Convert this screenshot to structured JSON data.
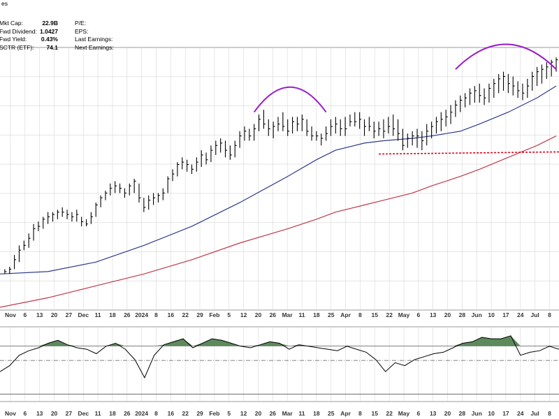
{
  "header": {
    "title_fragment": "es",
    "stats_left": [
      {
        "label": "Mkt Cap:",
        "value": "22.9B"
      },
      {
        "label": "Fwd Dividend:",
        "value": "1.0427"
      },
      {
        "label": "Fwd Yield:",
        "value": "0.43%"
      },
      {
        "label": "SCTR (ETF):",
        "value": "74.1"
      }
    ],
    "stats_right": [
      {
        "label": "P/E:"
      },
      {
        "label": "EPS:"
      },
      {
        "label": "Last Earnings:"
      },
      {
        "label": "Next Earnings:"
      }
    ]
  },
  "colors": {
    "price_bars": "#000000",
    "ma_short": "#2d3a8c",
    "ma_long": "#c0394b",
    "arc": "#9b1fc7",
    "support_line": "#e0001b",
    "grid": "#d6d6d6",
    "indicator_fill": "#5c8a5c",
    "indicator_line": "#000000"
  },
  "chart_data": {
    "type": "line",
    "x_tick_labels": [
      "Nov",
      "6",
      "13",
      "20",
      "27",
      "Dec",
      "11",
      "18",
      "26",
      "2024",
      "8",
      "16",
      "22",
      "29",
      "Feb",
      "5",
      "12",
      "20",
      "26",
      "Mar",
      "11",
      "18",
      "25",
      "Apr",
      "8",
      "15",
      "22",
      "May",
      "6",
      "13",
      "20",
      "28",
      "Jun",
      "10",
      "17",
      "24",
      "Jul",
      "8"
    ],
    "x_tick_bold": [
      true,
      false,
      false,
      false,
      false,
      true,
      false,
      false,
      false,
      true,
      false,
      false,
      false,
      false,
      true,
      false,
      false,
      false,
      false,
      true,
      false,
      false,
      false,
      true,
      false,
      false,
      false,
      true,
      false,
      false,
      false,
      false,
      true,
      false,
      false,
      false,
      true,
      false
    ],
    "x_range": [
      0,
      116
    ],
    "y_range": [
      0,
      100
    ],
    "x_tick_index": [
      2,
      3,
      8,
      13,
      18,
      23,
      28,
      33,
      38,
      42,
      47,
      52,
      56,
      61,
      66,
      67,
      72,
      77,
      82,
      87,
      92,
      97,
      102,
      107,
      112,
      117,
      122,
      127,
      131,
      136,
      141,
      146,
      151,
      156,
      161,
      166,
      170,
      175
    ],
    "price": [
      [
        1,
        16,
        14,
        15
      ],
      [
        2,
        17,
        14,
        16
      ],
      [
        3,
        22,
        16,
        20
      ],
      [
        4,
        26,
        19,
        24
      ],
      [
        5,
        28,
        24,
        26
      ],
      [
        6,
        31,
        25,
        29
      ],
      [
        7,
        35,
        28,
        33
      ],
      [
        8,
        36,
        32,
        34
      ],
      [
        9,
        38,
        33,
        37
      ],
      [
        10,
        40,
        35,
        38
      ],
      [
        11,
        40,
        36,
        39
      ],
      [
        12,
        41,
        37,
        40
      ],
      [
        13,
        42,
        38,
        40
      ],
      [
        14,
        41,
        37,
        39
      ],
      [
        15,
        40,
        36,
        38
      ],
      [
        16,
        41,
        36,
        39
      ],
      [
        17,
        38,
        34,
        36
      ],
      [
        18,
        37,
        34,
        35
      ],
      [
        19,
        40,
        35,
        38
      ],
      [
        20,
        44,
        38,
        43
      ],
      [
        21,
        47,
        42,
        46
      ],
      [
        22,
        49,
        45,
        48
      ],
      [
        23,
        52,
        47,
        50
      ],
      [
        24,
        53,
        48,
        51
      ],
      [
        25,
        52,
        48,
        50
      ],
      [
        26,
        50,
        46,
        48
      ],
      [
        27,
        52,
        47,
        51
      ],
      [
        28,
        54,
        48,
        53
      ],
      [
        29,
        52,
        44,
        46
      ],
      [
        30,
        46,
        40,
        42
      ],
      [
        31,
        47,
        41,
        45
      ],
      [
        32,
        48,
        43,
        46
      ],
      [
        33,
        48,
        44,
        47
      ],
      [
        34,
        50,
        45,
        48
      ],
      [
        35,
        55,
        48,
        54
      ],
      [
        36,
        58,
        53,
        56
      ],
      [
        37,
        61,
        55,
        60
      ],
      [
        38,
        63,
        58,
        61
      ],
      [
        39,
        62,
        57,
        60
      ],
      [
        40,
        60,
        56,
        58
      ],
      [
        41,
        63,
        57,
        61
      ],
      [
        42,
        66,
        59,
        64
      ],
      [
        43,
        65,
        60,
        62
      ],
      [
        44,
        68,
        61,
        66
      ],
      [
        45,
        70,
        64,
        68
      ],
      [
        46,
        71,
        65,
        69
      ],
      [
        47,
        70,
        63,
        66
      ],
      [
        48,
        68,
        62,
        64
      ],
      [
        49,
        70,
        63,
        68
      ],
      [
        50,
        74,
        67,
        72
      ],
      [
        51,
        76,
        70,
        74
      ],
      [
        52,
        75,
        70,
        72
      ],
      [
        53,
        77,
        70,
        75
      ],
      [
        54,
        81,
        74,
        79
      ],
      [
        55,
        83,
        75,
        77
      ],
      [
        56,
        79,
        72,
        75
      ],
      [
        57,
        78,
        71,
        76
      ],
      [
        58,
        80,
        74,
        77
      ],
      [
        59,
        82,
        74,
        76
      ],
      [
        60,
        79,
        72,
        74
      ],
      [
        61,
        80,
        73,
        78
      ],
      [
        62,
        80,
        74,
        77
      ],
      [
        63,
        81,
        74,
        79
      ],
      [
        64,
        79,
        72,
        74
      ],
      [
        65,
        76,
        70,
        72
      ],
      [
        66,
        74,
        70,
        72
      ],
      [
        67,
        73,
        68,
        71
      ],
      [
        68,
        76,
        70,
        73
      ],
      [
        69,
        79,
        72,
        76
      ],
      [
        70,
        80,
        73,
        77
      ],
      [
        71,
        79,
        72,
        75
      ],
      [
        72,
        80,
        72,
        75
      ],
      [
        73,
        81,
        76,
        78
      ],
      [
        74,
        82,
        76,
        78
      ],
      [
        75,
        82,
        75,
        79
      ],
      [
        76,
        79,
        72,
        76
      ],
      [
        77,
        80,
        74,
        76
      ],
      [
        78,
        78,
        71,
        74
      ],
      [
        79,
        78,
        72,
        75
      ],
      [
        80,
        79,
        71,
        74
      ],
      [
        81,
        80,
        73,
        76
      ],
      [
        82,
        81,
        72,
        75
      ],
      [
        83,
        79,
        70,
        73
      ],
      [
        84,
        75,
        66,
        68
      ],
      [
        85,
        73,
        67,
        71
      ],
      [
        86,
        74,
        68,
        72
      ],
      [
        87,
        75,
        67,
        72
      ],
      [
        88,
        74,
        66,
        70
      ],
      [
        89,
        77,
        68,
        74
      ],
      [
        90,
        78,
        71,
        76
      ],
      [
        91,
        80,
        73,
        78
      ],
      [
        92,
        82,
        74,
        79
      ],
      [
        93,
        83,
        76,
        80
      ],
      [
        94,
        85,
        77,
        82
      ],
      [
        95,
        87,
        80,
        85
      ],
      [
        96,
        89,
        82,
        87
      ],
      [
        97,
        90,
        84,
        88
      ],
      [
        98,
        92,
        85,
        90
      ],
      [
        99,
        93,
        86,
        91
      ],
      [
        100,
        94,
        86,
        89
      ],
      [
        101,
        92,
        85,
        88
      ],
      [
        102,
        94,
        86,
        92
      ],
      [
        103,
        96,
        88,
        94
      ],
      [
        104,
        98,
        90,
        96
      ],
      [
        105,
        99,
        91,
        97
      ],
      [
        106,
        98,
        90,
        94
      ],
      [
        107,
        97,
        89,
        93
      ],
      [
        108,
        95,
        88,
        91
      ],
      [
        109,
        94,
        87,
        90
      ],
      [
        110,
        96,
        88,
        93
      ],
      [
        111,
        99,
        91,
        97
      ],
      [
        112,
        101,
        93,
        99
      ],
      [
        113,
        102,
        94,
        100
      ],
      [
        114,
        103,
        96,
        101
      ],
      [
        115,
        104,
        97,
        103
      ],
      [
        116,
        105,
        99,
        104
      ]
    ],
    "ma_short": [
      [
        0,
        14
      ],
      [
        10,
        15
      ],
      [
        20,
        19
      ],
      [
        30,
        26
      ],
      [
        40,
        34
      ],
      [
        50,
        44
      ],
      [
        60,
        55
      ],
      [
        66,
        62
      ],
      [
        70,
        66
      ],
      [
        76,
        69
      ],
      [
        80,
        70
      ],
      [
        86,
        71
      ],
      [
        90,
        72
      ],
      [
        96,
        74
      ],
      [
        100,
        77
      ],
      [
        106,
        82
      ],
      [
        112,
        88
      ],
      [
        116,
        93
      ]
    ],
    "ma_long": [
      [
        0,
        0
      ],
      [
        10,
        4
      ],
      [
        20,
        9
      ],
      [
        30,
        14
      ],
      [
        40,
        20
      ],
      [
        50,
        27
      ],
      [
        60,
        33
      ],
      [
        66,
        37
      ],
      [
        70,
        40
      ],
      [
        76,
        43
      ],
      [
        80,
        45
      ],
      [
        86,
        48
      ],
      [
        90,
        51
      ],
      [
        96,
        55
      ],
      [
        100,
        58
      ],
      [
        106,
        63
      ],
      [
        112,
        68
      ],
      [
        116,
        72
      ]
    ],
    "support_level": 65,
    "support_x": [
      79,
      116
    ],
    "arcs": [
      {
        "x1": 53,
        "x2": 68,
        "peak": 90
      },
      {
        "x1": 95,
        "x2": 116,
        "peak": 108
      }
    ],
    "indicator": [
      [
        0,
        40
      ],
      [
        2,
        48
      ],
      [
        4,
        62
      ],
      [
        6,
        68
      ],
      [
        8,
        72
      ],
      [
        10,
        78
      ],
      [
        12,
        82
      ],
      [
        14,
        76
      ],
      [
        16,
        72
      ],
      [
        18,
        70
      ],
      [
        20,
        64
      ],
      [
        22,
        74
      ],
      [
        24,
        78
      ],
      [
        26,
        70
      ],
      [
        28,
        56
      ],
      [
        30,
        32
      ],
      [
        32,
        62
      ],
      [
        34,
        76
      ],
      [
        36,
        80
      ],
      [
        38,
        84
      ],
      [
        40,
        72
      ],
      [
        42,
        78
      ],
      [
        44,
        84
      ],
      [
        46,
        82
      ],
      [
        48,
        78
      ],
      [
        50,
        74
      ],
      [
        52,
        72
      ],
      [
        54,
        76
      ],
      [
        56,
        80
      ],
      [
        58,
        78
      ],
      [
        60,
        70
      ],
      [
        62,
        76
      ],
      [
        64,
        74
      ],
      [
        66,
        72
      ],
      [
        68,
        70
      ],
      [
        70,
        68
      ],
      [
        72,
        74
      ],
      [
        74,
        70
      ],
      [
        76,
        66
      ],
      [
        78,
        56
      ],
      [
        80,
        40
      ],
      [
        82,
        52
      ],
      [
        84,
        48
      ],
      [
        86,
        56
      ],
      [
        88,
        60
      ],
      [
        90,
        64
      ],
      [
        92,
        66
      ],
      [
        94,
        72
      ],
      [
        96,
        78
      ],
      [
        98,
        80
      ],
      [
        100,
        86
      ],
      [
        102,
        84
      ],
      [
        104,
        84
      ],
      [
        106,
        88
      ],
      [
        108,
        62
      ],
      [
        110,
        66
      ],
      [
        112,
        68
      ],
      [
        114,
        74
      ],
      [
        116,
        70
      ]
    ],
    "indicator_overbought": 80,
    "indicator_mid": 55,
    "indicator_oversold": 10
  }
}
